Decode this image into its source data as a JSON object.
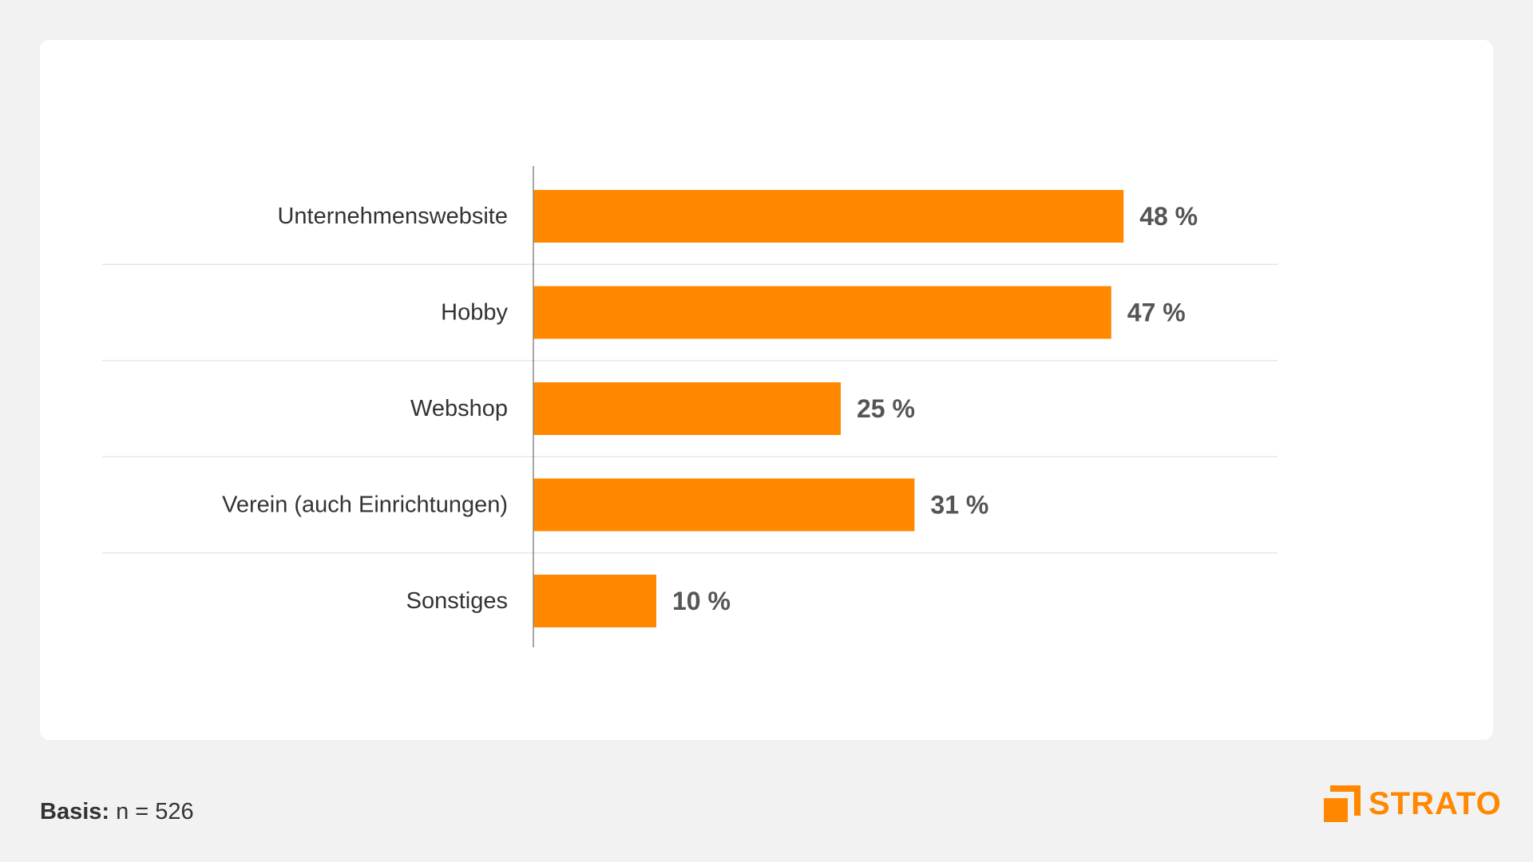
{
  "colors": {
    "bar": "#ff8800",
    "label_text": "#333333",
    "value_text": "#555555",
    "axis": "#888888",
    "grid": "#dfe3ea",
    "brand": "#ff8800"
  },
  "chart_data": {
    "type": "bar",
    "orientation": "horizontal",
    "title": "",
    "xlabel": "",
    "ylabel": "",
    "xlim": [
      0,
      60
    ],
    "categories": [
      "Unternehmenswebsite",
      "Hobby",
      "Webshop",
      "Verein (auch Einrichtungen)",
      "Sonstiges"
    ],
    "values": [
      48,
      47,
      25,
      31,
      10
    ],
    "value_labels": [
      "48 %",
      "47 %",
      "25 %",
      "31 %",
      "10 %"
    ],
    "grid": true,
    "legend": "none"
  },
  "footer": {
    "basis_label": "Basis:",
    "basis_value": " n = 526"
  },
  "brand": {
    "name": "STRATO",
    "icon": "strato-logo-icon"
  }
}
